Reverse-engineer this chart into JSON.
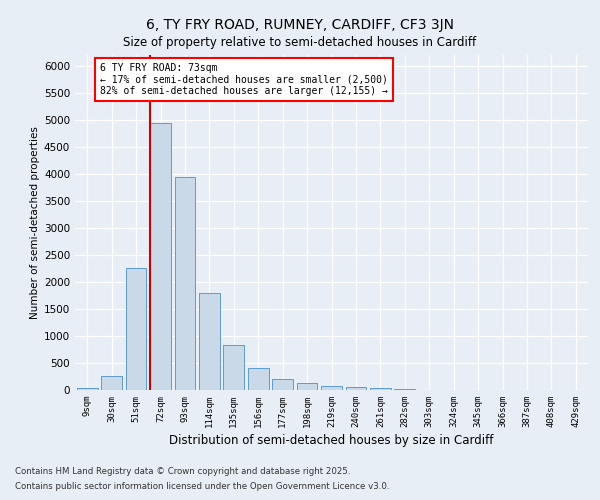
{
  "title_line1": "6, TY FRY ROAD, RUMNEY, CARDIFF, CF3 3JN",
  "title_line2": "Size of property relative to semi-detached houses in Cardiff",
  "xlabel": "Distribution of semi-detached houses by size in Cardiff",
  "ylabel": "Number of semi-detached properties",
  "categories": [
    "9sqm",
    "30sqm",
    "51sqm",
    "72sqm",
    "93sqm",
    "114sqm",
    "135sqm",
    "156sqm",
    "177sqm",
    "198sqm",
    "219sqm",
    "240sqm",
    "261sqm",
    "282sqm",
    "303sqm",
    "324sqm",
    "345sqm",
    "366sqm",
    "387sqm",
    "408sqm",
    "429sqm"
  ],
  "values": [
    30,
    250,
    2250,
    4950,
    3950,
    1800,
    840,
    410,
    200,
    130,
    80,
    55,
    30,
    15,
    8,
    5,
    3,
    2,
    1,
    1,
    0
  ],
  "bar_color": "#c9d9e8",
  "bar_edge_color": "#5b9bd5",
  "vline_bin": 3,
  "vline_color": "#cc0000",
  "annotation_title": "6 TY FRY ROAD: 73sqm",
  "annotation_line1": "← 17% of semi-detached houses are smaller (2,500)",
  "annotation_line2": "82% of semi-detached houses are larger (12,155) →",
  "ylim_max": 6200,
  "yticks": [
    0,
    500,
    1000,
    1500,
    2000,
    2500,
    3000,
    3500,
    4000,
    4500,
    5000,
    5500,
    6000
  ],
  "footnote1": "Contains HM Land Registry data © Crown copyright and database right 2025.",
  "footnote2": "Contains public sector information licensed under the Open Government Licence v3.0.",
  "bg_color": "#e8eef5"
}
